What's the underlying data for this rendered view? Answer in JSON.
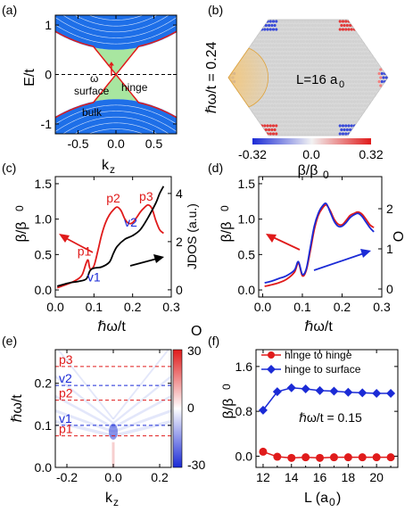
{
  "chart_data": [
    {
      "panel": "(a)",
      "type": "band-structure",
      "xlabel": "k",
      "xlabel_sub": "z",
      "ylabel": "E/t",
      "xlim": [
        -0.8,
        0.8
      ],
      "ylim": [
        -1.2,
        1.2
      ],
      "xticks": [
        "-0.5",
        "0.0",
        "0.5"
      ],
      "xtick_values": [
        -0.5,
        0.0,
        0.5
      ],
      "yticks": [
        "-1",
        "0",
        "1"
      ],
      "ytick_values": [
        -1,
        0,
        1
      ],
      "annotations": [
        "hinge",
        "surface",
        "bulk",
        "ω"
      ],
      "colors": {
        "bulk": "#1e6fe8",
        "surface": "#a8e6a0",
        "hinge": "#e01b1b"
      }
    },
    {
      "panel": "(b)",
      "type": "heatmap",
      "ylabel": "ℏω/t = 0.24",
      "inner_label": "L=16 a",
      "inner_label_sub": "0",
      "colorbar_ticks": [
        "-0.32",
        "0.0",
        "0.32"
      ],
      "colorbar_values": [
        -0.32,
        0.0,
        0.32
      ],
      "colorbar_label": "β/β",
      "colorbar_label_sub": "0",
      "colors": {
        "low": "#1b2bd6",
        "mid": "#f2f2f2",
        "high": "#e01b1b",
        "site": "#c8c8c8",
        "highlight": "#f4c77a"
      }
    },
    {
      "panel": "(c)",
      "type": "line",
      "xlabel": "ℏω/t",
      "ylabel": "β/β",
      "ylabel_sub": "0",
      "y2label": "JDOS (a.u.)",
      "xlim": [
        0.0,
        0.3
      ],
      "ylim": [
        -0.1,
        1.6
      ],
      "y2lim": [
        -0.3,
        4.7
      ],
      "xticks": [
        "0.0",
        "0.1",
        "0.2",
        "0.3"
      ],
      "xtick_values": [
        0.0,
        0.1,
        0.2,
        0.3
      ],
      "yticks": [
        "0.0",
        "0.5",
        "1.0",
        "1.5"
      ],
      "ytick_values": [
        0.0,
        0.5,
        1.0,
        1.5
      ],
      "y2ticks": [
        "0",
        "2",
        "4"
      ],
      "y2tick_values": [
        0,
        2,
        4
      ],
      "series": [
        {
          "color": "#e01b1b",
          "x": [
            0.005,
            0.02,
            0.04,
            0.06,
            0.07,
            0.08,
            0.085,
            0.09,
            0.1,
            0.11,
            0.12,
            0.13,
            0.14,
            0.15,
            0.16,
            0.17,
            0.18,
            0.19,
            0.2,
            0.21,
            0.22,
            0.23,
            0.24,
            0.25,
            0.26,
            0.27,
            0.28
          ],
          "values": [
            0.03,
            0.06,
            0.1,
            0.16,
            0.22,
            0.38,
            0.42,
            0.3,
            0.34,
            0.55,
            0.78,
            0.95,
            1.06,
            1.13,
            1.17,
            1.12,
            1.0,
            0.94,
            0.95,
            1.02,
            1.1,
            1.16,
            1.2,
            1.15,
            0.98,
            0.85,
            0.8
          ]
        },
        {
          "color": "#000000",
          "axis": "right",
          "x": [
            0.005,
            0.02,
            0.04,
            0.06,
            0.08,
            0.09,
            0.1,
            0.12,
            0.14,
            0.15,
            0.16,
            0.18,
            0.2,
            0.22,
            0.24,
            0.26,
            0.27,
            0.28
          ],
          "values": [
            0.15,
            0.22,
            0.3,
            0.35,
            0.45,
            0.8,
            0.9,
            0.95,
            1.15,
            1.5,
            1.8,
            2.1,
            2.25,
            2.5,
            3.0,
            3.6,
            4.0,
            4.3
          ]
        }
      ],
      "peak_labels": [
        {
          "label": "p1",
          "x": 0.075,
          "y": 0.45,
          "color": "#e01b1b"
        },
        {
          "label": "p2",
          "x": 0.15,
          "y": 1.2,
          "color": "#e01b1b"
        },
        {
          "label": "p3",
          "x": 0.235,
          "y": 1.22,
          "color": "#e01b1b"
        },
        {
          "label": "v1",
          "x": 0.1,
          "y": 0.08,
          "color": "#1b2bd6"
        },
        {
          "label": "v2",
          "x": 0.195,
          "y": 0.86,
          "color": "#1b2bd6"
        }
      ]
    },
    {
      "panel": "(d)",
      "type": "line",
      "xlabel": "ℏω/t",
      "ylabel": "β/β",
      "ylabel_sub": "0",
      "y2label": "O",
      "xlim": [
        -0.01,
        0.3
      ],
      "ylim": [
        -0.1,
        1.6
      ],
      "y2lim": [
        -0.2,
        2.8
      ],
      "xticks": [
        "0.0",
        "0.1",
        "0.2",
        "0.3"
      ],
      "xtick_values": [
        0.0,
        0.1,
        0.2,
        0.3
      ],
      "yticks": [
        "0.0",
        "0.5",
        "1.0",
        "1.5"
      ],
      "ytick_values": [
        0.0,
        0.5,
        1.0,
        1.5
      ],
      "y2ticks": [
        "0",
        "1",
        "2"
      ],
      "y2tick_values": [
        0,
        1,
        2
      ],
      "series": [
        {
          "color": "#e01b1b",
          "x": [
            0.005,
            0.02,
            0.04,
            0.06,
            0.08,
            0.09,
            0.1,
            0.11,
            0.12,
            0.13,
            0.14,
            0.15,
            0.16,
            0.17,
            0.18,
            0.19,
            0.2,
            0.21,
            0.22,
            0.23,
            0.24,
            0.25,
            0.26,
            0.27,
            0.28
          ],
          "values": [
            0.05,
            0.07,
            0.1,
            0.15,
            0.25,
            0.38,
            0.2,
            0.28,
            0.55,
            0.85,
            1.05,
            1.15,
            1.2,
            1.12,
            1.0,
            0.93,
            0.92,
            0.98,
            1.05,
            1.08,
            1.1,
            1.07,
            1.0,
            0.92,
            0.88
          ]
        },
        {
          "color": "#1b2bd6",
          "x": [
            0.005,
            0.02,
            0.04,
            0.06,
            0.08,
            0.09,
            0.1,
            0.11,
            0.12,
            0.13,
            0.14,
            0.15,
            0.16,
            0.17,
            0.18,
            0.19,
            0.2,
            0.21,
            0.22,
            0.23,
            0.24,
            0.25,
            0.26,
            0.27,
            0.28
          ],
          "values": [
            0.1,
            0.12,
            0.16,
            0.2,
            0.28,
            0.4,
            0.22,
            0.3,
            0.6,
            0.9,
            1.08,
            1.18,
            1.22,
            1.1,
            0.97,
            0.9,
            0.9,
            0.95,
            1.02,
            1.06,
            1.08,
            1.04,
            0.96,
            0.88,
            0.82
          ]
        }
      ]
    },
    {
      "panel": "(e)",
      "type": "heatmap",
      "xlabel": "k",
      "xlabel_sub": "z",
      "ylabel": "ℏω/t",
      "xlim": [
        -0.25,
        0.25
      ],
      "ylim": [
        0.0,
        0.28
      ],
      "xticks": [
        "-0.2",
        "0.0",
        "0.2"
      ],
      "xtick_values": [
        -0.2,
        0.0,
        0.2
      ],
      "yticks": [
        "0.0",
        "0.1",
        "0.2"
      ],
      "ytick_values": [
        0.0,
        0.1,
        0.2
      ],
      "colorbar_label": "O",
      "colorbar_ticks": [
        "30",
        "0",
        "-30"
      ],
      "colorbar_values": [
        30,
        0,
        -30
      ],
      "reference_lines": [
        {
          "label": "p3",
          "y": 0.24,
          "color": "#e01b1b"
        },
        {
          "label": "v2",
          "y": 0.195,
          "color": "#1b2bd6"
        },
        {
          "label": "p2",
          "y": 0.16,
          "color": "#e01b1b"
        },
        {
          "label": "v1",
          "y": 0.1,
          "color": "#1b2bd6"
        },
        {
          "label": "p1",
          "y": 0.075,
          "color": "#e01b1b"
        }
      ]
    },
    {
      "panel": "(f)",
      "type": "line",
      "xlabel": "L (a",
      "xlabel_sub": "0",
      "xlabel_end": ")",
      "ylabel": "β/β",
      "ylabel_sub": "0",
      "xlim": [
        11.5,
        21.5
      ],
      "ylim": [
        -0.2,
        1.9
      ],
      "xticks": [
        "12",
        "14",
        "16",
        "18",
        "20"
      ],
      "xtick_values": [
        12,
        14,
        16,
        18,
        20
      ],
      "yticks": [
        "0.0",
        "0.8",
        "1.6"
      ],
      "ytick_values": [
        0.0,
        0.8,
        1.6
      ],
      "annotation": "ℏω/t = 0.15",
      "legend_position": "top",
      "series": [
        {
          "name": "hinge to hinge",
          "color": "#e01b1b",
          "marker": "circle",
          "x": [
            12,
            13,
            14,
            15,
            16,
            17,
            18,
            19,
            20,
            21
          ],
          "values": [
            0.08,
            -0.01,
            -0.03,
            -0.02,
            -0.03,
            -0.02,
            -0.02,
            -0.02,
            -0.02,
            -0.02
          ]
        },
        {
          "name": "hinge to surface",
          "color": "#1b2bd6",
          "marker": "diamond",
          "x": [
            12,
            13,
            14,
            15,
            16,
            17,
            18,
            19,
            20,
            21
          ],
          "values": [
            0.82,
            1.15,
            1.22,
            1.2,
            1.17,
            1.16,
            1.14,
            1.13,
            1.12,
            1.12
          ]
        }
      ]
    }
  ]
}
